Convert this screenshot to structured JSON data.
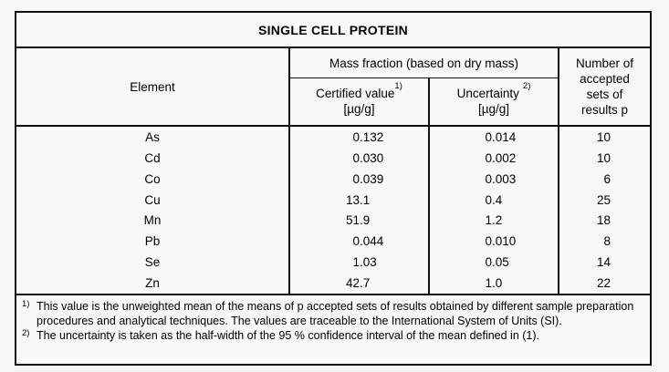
{
  "title": "SINGLE CELL PROTEIN",
  "header": {
    "element": "Element",
    "mass_fraction": "Mass fraction (based on dry mass)",
    "certified": {
      "label": "Certified value",
      "sup": "1)",
      "unit": "[µg/g]"
    },
    "uncertainty": {
      "label": "Uncertainty",
      "sup": "2)",
      "unit": "[µg/g]"
    },
    "accepted_sets": "Number of accepted sets of results p"
  },
  "rows": [
    {
      "element": "As",
      "certified": "0.132",
      "uncertainty": "0.014",
      "p": "10"
    },
    {
      "element": "Cd",
      "certified": "0.030",
      "uncertainty": "0.002",
      "p": "10"
    },
    {
      "element": "Co",
      "certified": "0.039",
      "uncertainty": "0.003",
      "p": "6"
    },
    {
      "element": "Cu",
      "certified": "13.1",
      "uncertainty": "0.4",
      "p": "25"
    },
    {
      "element": "Mn",
      "certified": "51.9",
      "uncertainty": "1.2",
      "p": "18"
    },
    {
      "element": "Pb",
      "certified": "0.044",
      "uncertainty": "0.010",
      "p": "8"
    },
    {
      "element": "Se",
      "certified": "1.03",
      "uncertainty": "0.05",
      "p": "14"
    },
    {
      "element": "Zn",
      "certified": "42.7",
      "uncertainty": "1.0",
      "p": "22"
    }
  ],
  "footnotes": [
    {
      "marker": "1)",
      "text": "This value is the unweighted mean of the means of p accepted sets of results obtained by different sample preparation procedures and analytical techniques. The values are traceable to the International System of Units (SI)."
    },
    {
      "marker": "2)",
      "text": "The uncertainty is taken as the half-width of the 95 % confidence interval of the mean defined in (1)."
    }
  ],
  "colors": {
    "background": "#f6f6f3",
    "table_background": "#f8f8f5",
    "border": "#101010",
    "text": "#000000"
  }
}
